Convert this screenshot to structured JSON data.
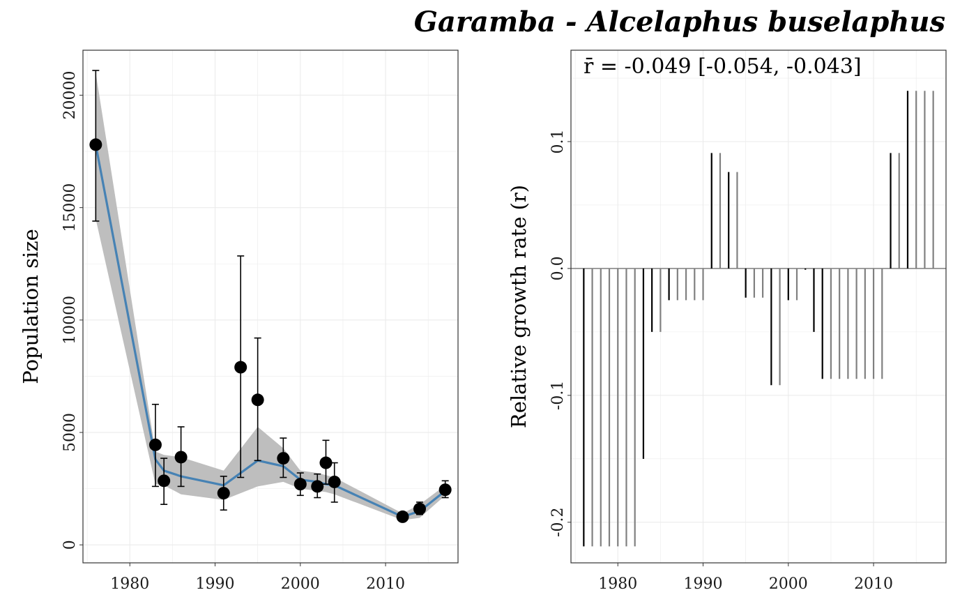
{
  "title": "Garamba - Alcelaphus buselaphus",
  "colors": {
    "line": "#4682B4",
    "ribbon": "#BEBEBE",
    "point": "#000000",
    "observed_bar": "#000000",
    "interpolated_bar": "#808080",
    "grid": "#EBEBEB"
  },
  "chart_data": [
    {
      "type": "scatter",
      "ylabel": "Population size",
      "xlabel": "",
      "xlim": [
        1974.5,
        2018.5
      ],
      "ylim": [
        -800,
        22000
      ],
      "xticks": [
        1980,
        1990,
        2000,
        2010
      ],
      "yticks": [
        0,
        5000,
        10000,
        15000,
        20000
      ],
      "observations": [
        {
          "x": 1976,
          "y": 17800,
          "lo": 14400,
          "hi": 21100
        },
        {
          "x": 1983,
          "y": 4450,
          "lo": 2600,
          "hi": 6250
        },
        {
          "x": 1984,
          "y": 2850,
          "lo": 1800,
          "hi": 3850
        },
        {
          "x": 1986,
          "y": 3900,
          "lo": 2600,
          "hi": 5250
        },
        {
          "x": 1991,
          "y": 2300,
          "lo": 1550,
          "hi": 3050
        },
        {
          "x": 1993,
          "y": 7900,
          "lo": 3000,
          "hi": 12850
        },
        {
          "x": 1995,
          "y": 6450,
          "lo": 3750,
          "hi": 9200
        },
        {
          "x": 1998,
          "y": 3850,
          "lo": 3000,
          "hi": 4750
        },
        {
          "x": 2000,
          "y": 2700,
          "lo": 2200,
          "hi": 3200
        },
        {
          "x": 2002,
          "y": 2600,
          "lo": 2100,
          "hi": 3150
        },
        {
          "x": 2003,
          "y": 3650,
          "lo": 2700,
          "hi": 4650
        },
        {
          "x": 2004,
          "y": 2800,
          "lo": 1900,
          "hi": 3650
        },
        {
          "x": 2012,
          "y": 1250,
          "lo": 1150,
          "hi": 1350
        },
        {
          "x": 2014,
          "y": 1600,
          "lo": 1350,
          "hi": 1900
        },
        {
          "x": 2017,
          "y": 2450,
          "lo": 2100,
          "hi": 2850
        }
      ],
      "fit": {
        "x": [
          1976,
          1983,
          1984,
          1986,
          1991,
          1995,
          1998,
          2000,
          2002,
          2003,
          2004,
          2012,
          2014,
          2017
        ],
        "y": [
          17800,
          3800,
          3300,
          3050,
          2650,
          3750,
          3500,
          2900,
          2800,
          2700,
          2650,
          1250,
          1500,
          2400
        ],
        "lo": [
          14500,
          2700,
          2650,
          2250,
          2000,
          2600,
          2800,
          2500,
          2400,
          2350,
          2250,
          1100,
          1200,
          2200
        ],
        "hi": [
          21000,
          4150,
          4000,
          3900,
          3300,
          5250,
          4300,
          3300,
          3200,
          3100,
          3000,
          1400,
          1800,
          2650
        ]
      }
    },
    {
      "type": "bar",
      "ylabel": "Relative growth rate (r)",
      "xlabel": "",
      "xlim": [
        1974.5,
        2018.5
      ],
      "ylim": [
        -0.232,
        0.172
      ],
      "xticks": [
        1980,
        1990,
        2000,
        2010
      ],
      "yticks": [
        -0.2,
        -0.1,
        0.0,
        0.1
      ],
      "ytick_labels": [
        "-0.2",
        "-0.1",
        "0.0",
        "0.1"
      ],
      "annotation": "r̄ = -0.049 [-0.054, -0.043]",
      "bars": [
        {
          "x": 1976,
          "r": -0.219,
          "observed": true
        },
        {
          "x": 1977,
          "r": -0.219,
          "observed": false
        },
        {
          "x": 1978,
          "r": -0.219,
          "observed": false
        },
        {
          "x": 1979,
          "r": -0.219,
          "observed": false
        },
        {
          "x": 1980,
          "r": -0.219,
          "observed": false
        },
        {
          "x": 1981,
          "r": -0.219,
          "observed": false
        },
        {
          "x": 1982,
          "r": -0.219,
          "observed": false
        },
        {
          "x": 1983,
          "r": -0.15,
          "observed": true
        },
        {
          "x": 1984,
          "r": -0.05,
          "observed": true
        },
        {
          "x": 1985,
          "r": -0.05,
          "observed": false
        },
        {
          "x": 1986,
          "r": -0.025,
          "observed": true
        },
        {
          "x": 1987,
          "r": -0.025,
          "observed": false
        },
        {
          "x": 1988,
          "r": -0.025,
          "observed": false
        },
        {
          "x": 1989,
          "r": -0.025,
          "observed": false
        },
        {
          "x": 1990,
          "r": -0.025,
          "observed": false
        },
        {
          "x": 1991,
          "r": 0.091,
          "observed": true
        },
        {
          "x": 1992,
          "r": 0.091,
          "observed": false
        },
        {
          "x": 1993,
          "r": 0.076,
          "observed": true
        },
        {
          "x": 1994,
          "r": 0.076,
          "observed": false
        },
        {
          "x": 1995,
          "r": -0.023,
          "observed": true
        },
        {
          "x": 1996,
          "r": -0.023,
          "observed": false
        },
        {
          "x": 1997,
          "r": -0.023,
          "observed": false
        },
        {
          "x": 1998,
          "r": -0.092,
          "observed": true
        },
        {
          "x": 1999,
          "r": -0.092,
          "observed": false
        },
        {
          "x": 2000,
          "r": -0.025,
          "observed": true
        },
        {
          "x": 2001,
          "r": -0.025,
          "observed": false
        },
        {
          "x": 2002,
          "r": -0.001,
          "observed": true
        },
        {
          "x": 2003,
          "r": -0.05,
          "observed": true
        },
        {
          "x": 2004,
          "r": -0.087,
          "observed": true
        },
        {
          "x": 2005,
          "r": -0.087,
          "observed": false
        },
        {
          "x": 2006,
          "r": -0.087,
          "observed": false
        },
        {
          "x": 2007,
          "r": -0.087,
          "observed": false
        },
        {
          "x": 2008,
          "r": -0.087,
          "observed": false
        },
        {
          "x": 2009,
          "r": -0.087,
          "observed": false
        },
        {
          "x": 2010,
          "r": -0.087,
          "observed": false
        },
        {
          "x": 2011,
          "r": -0.087,
          "observed": false
        },
        {
          "x": 2012,
          "r": 0.091,
          "observed": true
        },
        {
          "x": 2013,
          "r": 0.091,
          "observed": false
        },
        {
          "x": 2014,
          "r": 0.14,
          "observed": true
        },
        {
          "x": 2015,
          "r": 0.14,
          "observed": false
        },
        {
          "x": 2016,
          "r": 0.14,
          "observed": false
        },
        {
          "x": 2017,
          "r": 0.14,
          "observed": false
        }
      ]
    }
  ]
}
